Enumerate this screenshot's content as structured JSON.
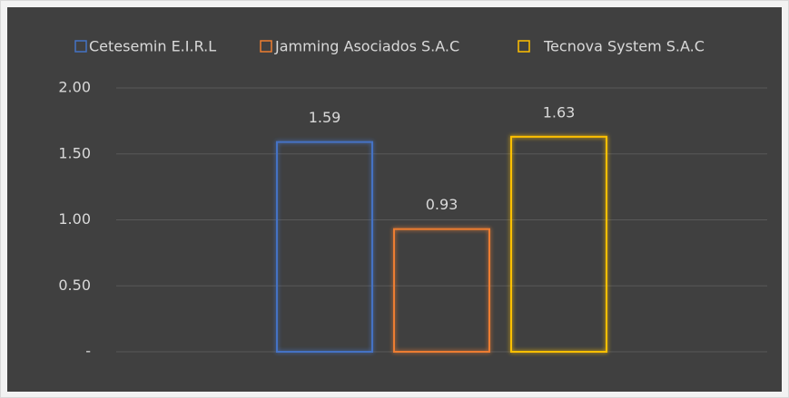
{
  "chart_data": {
    "type": "bar",
    "categories": [
      null
    ],
    "series": [
      {
        "name": "Cetesemin E.I.R.L",
        "color": "#4472c4",
        "values": [
          1.59
        ]
      },
      {
        "name": "Jamming Asociados S.A.C",
        "color": "#ed7d31",
        "values": [
          0.93
        ]
      },
      {
        "name": "Tecnova System S.A.C",
        "color": "#ffc000",
        "values": [
          1.63
        ]
      }
    ],
    "ylim": [
      0,
      2
    ],
    "yticks": [
      {
        "value": 0,
        "label": "-"
      },
      {
        "value": 0.5,
        "label": "0.50"
      },
      {
        "value": 1,
        "label": "1.00"
      },
      {
        "value": 1.5,
        "label": "1.50"
      },
      {
        "value": 2,
        "label": "2.00"
      }
    ],
    "grid": true,
    "legend": "top",
    "bar_style": "outline"
  }
}
